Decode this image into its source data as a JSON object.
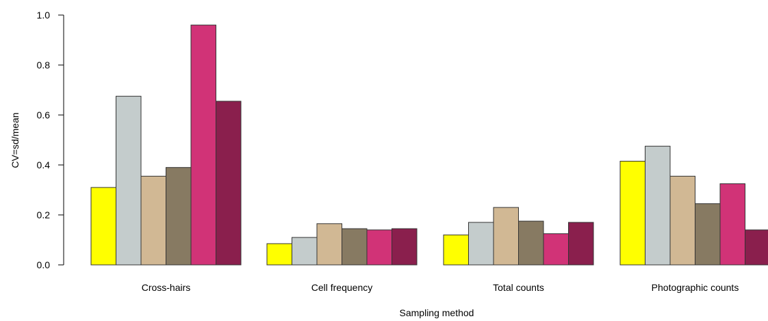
{
  "chart_data": {
    "type": "bar",
    "xlabel": "Sampling method",
    "ylabel": "CV=sd/mean",
    "ylim": [
      0,
      1.0
    ],
    "yticks": [
      "0.0",
      "0.2",
      "0.4",
      "0.6",
      "0.8",
      "1.0"
    ],
    "grid": false,
    "categories": [
      "Cross-hairs",
      "Cell frequency",
      "Total counts",
      "Photographic counts"
    ],
    "series_colors": [
      "#ffff00",
      "#c4cccc",
      "#d1b894",
      "#877a62",
      "#d13377",
      "#8a1f4d"
    ],
    "series": [
      {
        "values": [
          0.31,
          0.085,
          0.12,
          0.415
        ]
      },
      {
        "values": [
          0.675,
          0.11,
          0.17,
          0.475
        ]
      },
      {
        "values": [
          0.355,
          0.165,
          0.23,
          0.355
        ]
      },
      {
        "values": [
          0.39,
          0.145,
          0.175,
          0.245
        ]
      },
      {
        "values": [
          0.96,
          0.14,
          0.125,
          0.325
        ]
      },
      {
        "values": [
          0.655,
          0.145,
          0.17,
          0.14
        ]
      }
    ]
  }
}
